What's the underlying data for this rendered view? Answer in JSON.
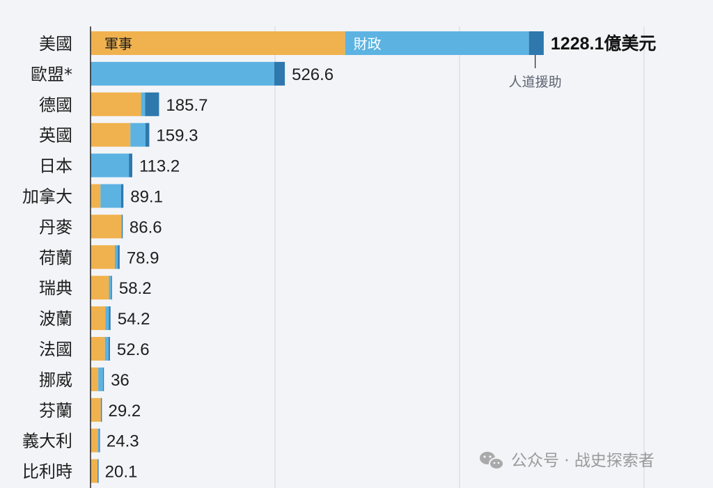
{
  "colors": {
    "military": "#f0b24e",
    "financial": "#5cb3e2",
    "humanitarian": "#2e78ad",
    "grid": "#d2d5db",
    "axis": "#222222",
    "background": "#f3f4f8"
  },
  "chart_data": {
    "type": "bar",
    "orientation": "horizontal",
    "stacked": true,
    "title": "",
    "xlabel": "",
    "ylabel": "",
    "xlim": [
      0,
      1500
    ],
    "grid": true,
    "categories": [
      "美國",
      "歐盟*",
      "德國",
      "英國",
      "日本",
      "加拿大",
      "丹麥",
      "荷蘭",
      "瑞典",
      "波蘭",
      "法國",
      "挪威",
      "芬蘭",
      "義大利",
      "比利時"
    ],
    "series": [
      {
        "name": "軍事",
        "values": [
          690,
          0,
          137,
          108,
          0,
          27,
          84,
          66,
          50,
          40,
          39,
          21,
          28,
          20,
          19
        ]
      },
      {
        "name": "財政",
        "values": [
          498,
          498,
          11,
          41,
          104,
          56,
          1,
          8,
          6,
          10,
          10,
          13,
          0.6,
          3.3,
          0.6
        ]
      },
      {
        "name": "人道援助",
        "values": [
          40.1,
          28.6,
          37.7,
          10.3,
          9.2,
          6.1,
          1.6,
          4.9,
          2.2,
          4.2,
          3.6,
          2,
          0.6,
          1,
          0.5
        ]
      }
    ],
    "totals_labels": [
      "1228.1億美元",
      "526.6",
      "185.7",
      "159.3",
      "113.2",
      "89.1",
      "86.6",
      "78.9",
      "58.2",
      "54.2",
      "52.6",
      "36",
      "29.2",
      "24.3",
      "20.1"
    ],
    "annotations": {
      "military_label": "軍事",
      "financial_label": "財政",
      "humanitarian_label": "人道援助"
    }
  },
  "watermark": {
    "icon": "wechat-icon",
    "text": "公众号 · 战史探索者"
  }
}
